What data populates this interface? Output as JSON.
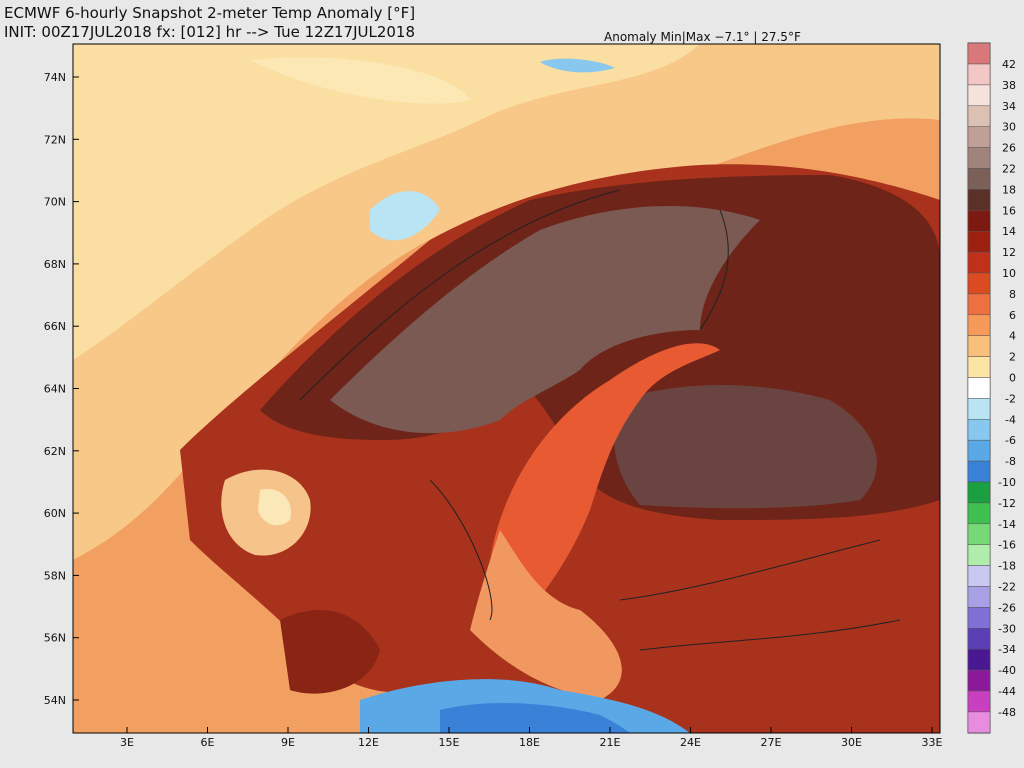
{
  "header": {
    "title": "ECMWF 6-hourly Snapshot 2-meter Temp Anomaly [°F]",
    "init": "INIT: 00Z17JUL2018 fx: [012] hr --> Tue 12Z17JUL2018",
    "anomaly": "Anomaly Min|Max −7.1° | 27.5°F"
  },
  "map": {
    "lat_labels": [
      "74N",
      "72N",
      "70N",
      "68N",
      "66N",
      "64N",
      "62N",
      "60N",
      "58N",
      "56N",
      "54N"
    ],
    "lon_labels": [
      "3E",
      "6E",
      "9E",
      "12E",
      "15E",
      "18E",
      "21E",
      "24E",
      "27E",
      "30E",
      "33E"
    ]
  },
  "colorbar": {
    "labels": [
      42,
      38,
      34,
      30,
      26,
      22,
      18,
      16,
      14,
      12,
      10,
      8,
      6,
      4,
      2,
      0,
      -2,
      -4,
      -6,
      -8,
      -10,
      -12,
      -14,
      -16,
      -18,
      -22,
      -26,
      -30,
      -34,
      -40,
      -44,
      -48
    ],
    "colors": [
      "#d9787a",
      "#f4c6c6",
      "#f6e2dc",
      "#dcc0b4",
      "#c0a096",
      "#a0847c",
      "#7a6058",
      "#5c3028",
      "#7a1a10",
      "#9c2010",
      "#c0301a",
      "#dc4a22",
      "#ee7040",
      "#f59a5a",
      "#f8c07a",
      "#fbe4a4",
      "#ffffff",
      "#b8e4f4",
      "#88c8ee",
      "#5aa8e6",
      "#3a82d8",
      "#1aa040",
      "#40c050",
      "#78d878",
      "#b0ecac",
      "#c8c8f0",
      "#a8a0e4",
      "#8070d4",
      "#5a40b4",
      "#4a1890",
      "#8a1a9a",
      "#c840c0",
      "#e88ce0"
    ]
  }
}
